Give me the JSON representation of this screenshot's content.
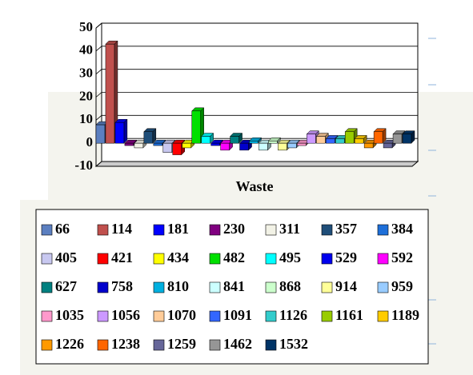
{
  "chart_data": {
    "type": "bar3d",
    "categories": [
      "Waste"
    ],
    "ylim": [
      -10,
      50
    ],
    "yticks": [
      -10,
      0,
      10,
      20,
      30,
      40,
      50
    ],
    "grid": true,
    "series": [
      {
        "name": "66",
        "color": "#5b7fc0",
        "values": [
          8
        ]
      },
      {
        "name": "114",
        "color": "#c0504d",
        "values": [
          43
        ]
      },
      {
        "name": "181",
        "color": "#0000ff",
        "values": [
          9
        ]
      },
      {
        "name": "230",
        "color": "#800080",
        "values": [
          -1
        ]
      },
      {
        "name": "311",
        "color": "#f2f2e6",
        "values": [
          -2
        ]
      },
      {
        "name": "357",
        "color": "#1f4e79",
        "values": [
          5
        ]
      },
      {
        "name": "384",
        "color": "#1e6fd9",
        "values": [
          -1
        ]
      },
      {
        "name": "405",
        "color": "#c8c8f0",
        "values": [
          -4
        ]
      },
      {
        "name": "421",
        "color": "#ff0000",
        "values": [
          -5
        ]
      },
      {
        "name": "434",
        "color": "#ffff00",
        "values": [
          -2
        ]
      },
      {
        "name": "482",
        "color": "#00e000",
        "values": [
          14
        ]
      },
      {
        "name": "495",
        "color": "#00ffff",
        "values": [
          3
        ]
      },
      {
        "name": "529",
        "color": "#0000ee",
        "values": [
          -1
        ]
      },
      {
        "name": "592",
        "color": "#ff00ff",
        "values": [
          -3
        ]
      },
      {
        "name": "627",
        "color": "#008080",
        "values": [
          3
        ]
      },
      {
        "name": "758",
        "color": "#0000cc",
        "values": [
          -3
        ]
      },
      {
        "name": "810",
        "color": "#00b0e0",
        "values": [
          1
        ]
      },
      {
        "name": "841",
        "color": "#ccffff",
        "values": [
          -3
        ]
      },
      {
        "name": "868",
        "color": "#ccffcc",
        "values": [
          1
        ]
      },
      {
        "name": "914",
        "color": "#ffff99",
        "values": [
          -3
        ]
      },
      {
        "name": "959",
        "color": "#99ccff",
        "values": [
          -2
        ]
      },
      {
        "name": "1035",
        "color": "#ff99cc",
        "values": [
          -1
        ]
      },
      {
        "name": "1056",
        "color": "#cc99ff",
        "values": [
          4
        ]
      },
      {
        "name": "1070",
        "color": "#ffcc99",
        "values": [
          3
        ]
      },
      {
        "name": "1091",
        "color": "#3366ff",
        "values": [
          2
        ]
      },
      {
        "name": "1126",
        "color": "#33cccc",
        "values": [
          2
        ]
      },
      {
        "name": "1161",
        "color": "#99cc00",
        "values": [
          5
        ]
      },
      {
        "name": "1189",
        "color": "#ffcc00",
        "values": [
          2
        ]
      },
      {
        "name": "1226",
        "color": "#ff9900",
        "values": [
          -2
        ]
      },
      {
        "name": "1238",
        "color": "#ff6600",
        "values": [
          5
        ]
      },
      {
        "name": "1259",
        "color": "#666699",
        "values": [
          -2
        ]
      },
      {
        "name": "1462",
        "color": "#969696",
        "values": [
          4
        ]
      },
      {
        "name": "1532",
        "color": "#003366",
        "values": [
          4
        ]
      }
    ]
  }
}
